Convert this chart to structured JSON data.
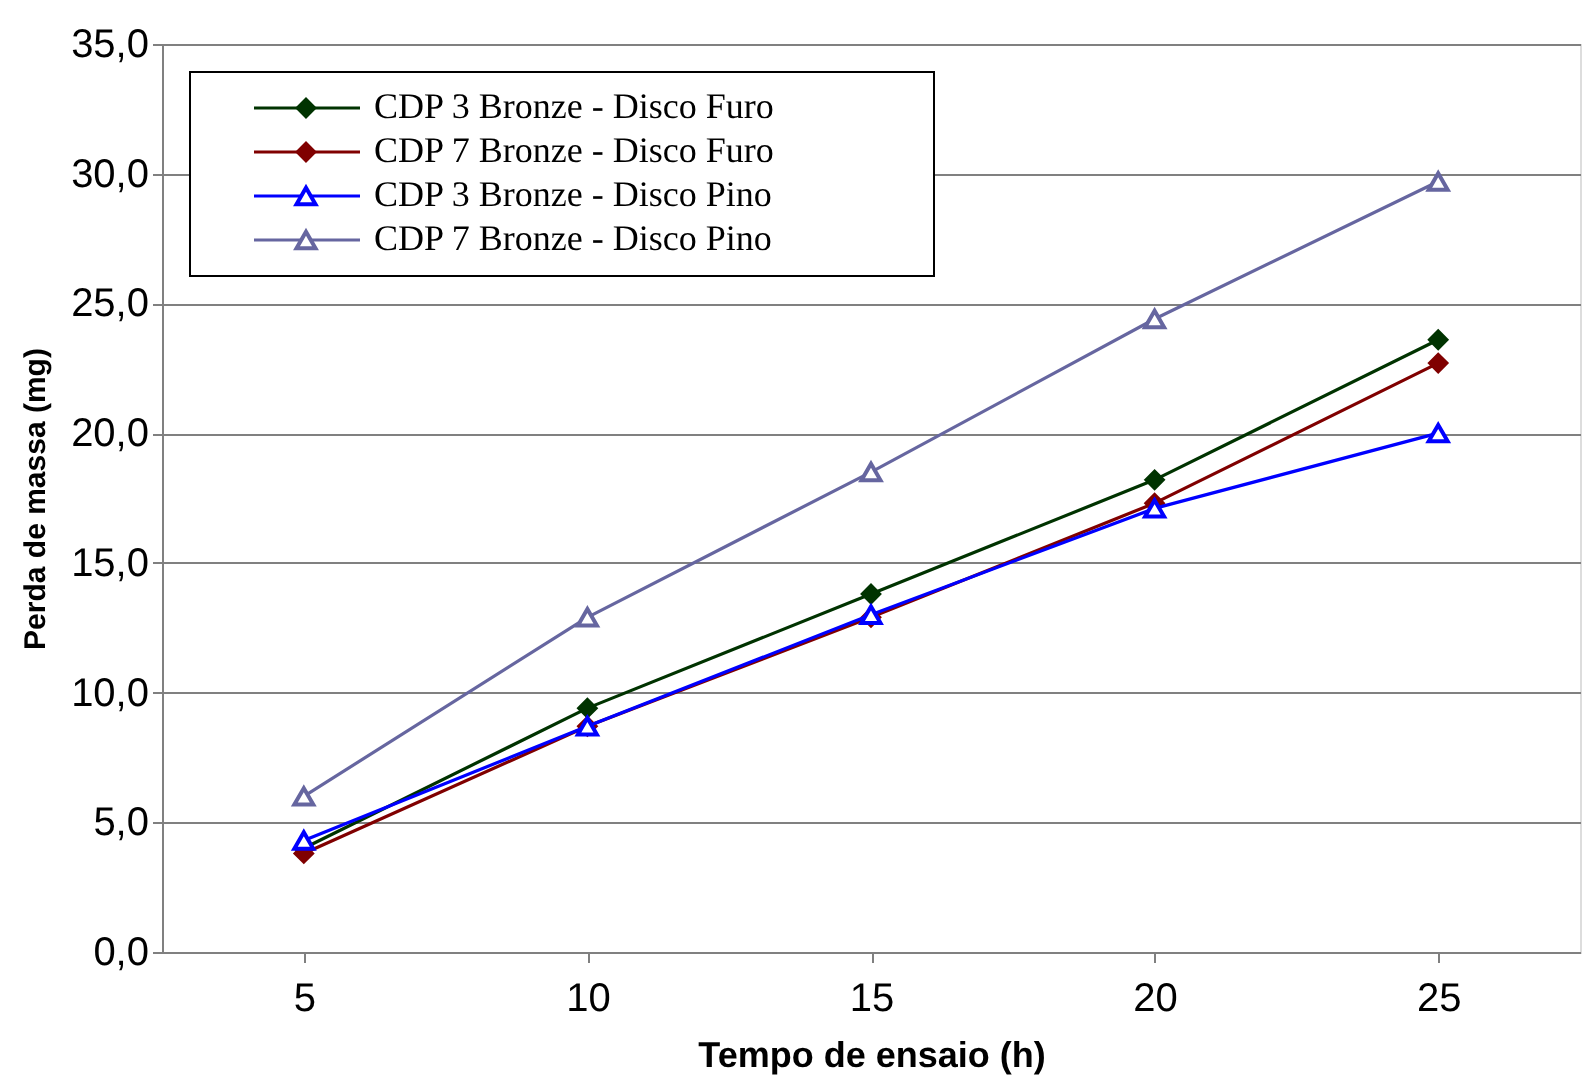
{
  "chart_data": {
    "type": "line",
    "xlabel": "Tempo de ensaio (h)",
    "ylabel": "Perda de massa (mg)",
    "categories": [
      "5",
      "10",
      "15",
      "20",
      "25"
    ],
    "ylim": [
      0,
      35
    ],
    "yticks": [
      {
        "value": 0,
        "label": "0,0"
      },
      {
        "value": 5,
        "label": "5,0"
      },
      {
        "value": 10,
        "label": "10,0"
      },
      {
        "value": 15,
        "label": "15,0"
      },
      {
        "value": 20,
        "label": "20,0"
      },
      {
        "value": 25,
        "label": "25,0"
      },
      {
        "value": 30,
        "label": "30,0"
      },
      {
        "value": 35,
        "label": "35,0"
      }
    ],
    "grid": "y",
    "legend": "top left",
    "series": [
      {
        "name": "CDP 3 Bronze - Disco Furo",
        "color": "#003300",
        "marker": "diamond",
        "values": [
          4.0,
          9.4,
          13.8,
          18.2,
          23.6
        ]
      },
      {
        "name": "CDP 7 Bronze - Disco Furo",
        "color": "#800000",
        "marker": "diamond",
        "values": [
          3.8,
          8.7,
          12.9,
          17.3,
          22.7
        ]
      },
      {
        "name": "CDP 3 Bronze - Disco Pino",
        "color": "#0000ff",
        "marker": "triangle",
        "values": [
          4.3,
          8.7,
          13.0,
          17.1,
          20.0
        ]
      },
      {
        "name": "CDP 7 Bronze - Disco Pino",
        "color": "#6666a0",
        "marker": "triangle",
        "values": [
          6.0,
          12.9,
          18.5,
          24.4,
          29.7
        ]
      }
    ]
  }
}
